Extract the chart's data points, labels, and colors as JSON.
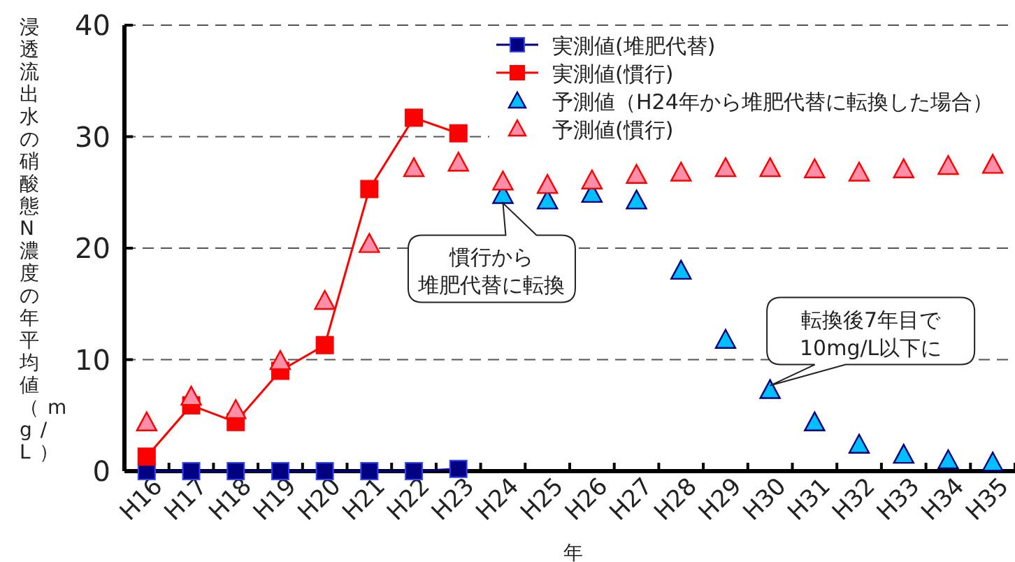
{
  "chart_data": {
    "type": "line",
    "ylabel": "浸透流出水の硝酸態N濃度の年平均値（mg/L）",
    "xlabel": "年",
    "categories": [
      "H16",
      "H17",
      "H18",
      "H19",
      "H20",
      "H21",
      "H22",
      "H23",
      "H24",
      "H25",
      "H26",
      "H27",
      "H28",
      "H29",
      "H30",
      "H31",
      "H32",
      "H33",
      "H34",
      "H35"
    ],
    "series": [
      {
        "name": "実測値(堆肥代替)",
        "marker": "square",
        "color": "#000080",
        "values": [
          0,
          0,
          0,
          0,
          0,
          0,
          0,
          0.2,
          null,
          null,
          null,
          null,
          null,
          null,
          null,
          null,
          null,
          null,
          null,
          null
        ]
      },
      {
        "name": "実測値(慣行)",
        "marker": "square",
        "color": "#ff0000",
        "values": [
          1.3,
          5.9,
          4.4,
          9.0,
          11.3,
          25.3,
          31.7,
          30.3,
          null,
          null,
          null,
          null,
          null,
          null,
          null,
          null,
          null,
          null,
          null,
          null
        ]
      },
      {
        "name": "予測値（H24年から堆肥代替に転換した場合）",
        "type": "scatter",
        "marker": "triangle",
        "color": "#00bfff",
        "values": [
          null,
          null,
          null,
          null,
          null,
          null,
          null,
          null,
          24.8,
          24.3,
          24.9,
          24.3,
          18.0,
          11.8,
          7.3,
          4.4,
          2.4,
          1.5,
          1.0,
          0.8
        ]
      },
      {
        "name": "予測値(慣行)",
        "type": "scatter",
        "marker": "triangle",
        "color": "#ff8fa8",
        "values": [
          4.4,
          6.7,
          5.5,
          9.9,
          15.3,
          20.4,
          27.2,
          27.7,
          26.0,
          25.7,
          26.1,
          26.6,
          26.8,
          27.2,
          27.2,
          27.1,
          26.8,
          27.1,
          27.4,
          27.5
        ]
      }
    ],
    "ylim": [
      0,
      40
    ],
    "yticks": [
      0,
      10,
      20,
      30,
      40
    ],
    "grid": "y",
    "legend": "top right",
    "annotations": [
      {
        "text": "慣行から堆肥代替に転換",
        "x": "H24",
        "y": 24.8
      },
      {
        "text": "転換後7年目で10mg/L以下に",
        "x": "H30",
        "y": 7.3
      }
    ]
  }
}
